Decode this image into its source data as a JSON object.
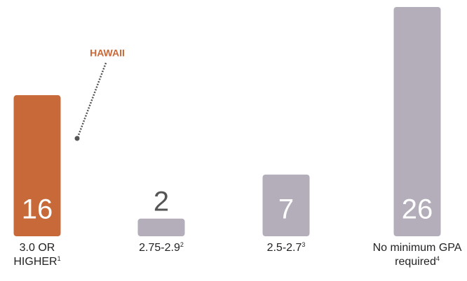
{
  "chart_data": {
    "type": "bar",
    "categories": [
      "3.0 OR HIGHER",
      "2.75-2.9",
      "2.5-2.7",
      "No minimum GPA required"
    ],
    "category_notes": [
      "1",
      "2",
      "3",
      "4"
    ],
    "values": [
      16,
      2,
      7,
      26
    ],
    "colors": [
      "#c8693a",
      "#b4aebb",
      "#b4aebb",
      "#b4aebb"
    ],
    "ylim": [
      0,
      26
    ],
    "annotation": {
      "text": "HAWAII",
      "color": "#c8693a",
      "category": 0
    }
  }
}
